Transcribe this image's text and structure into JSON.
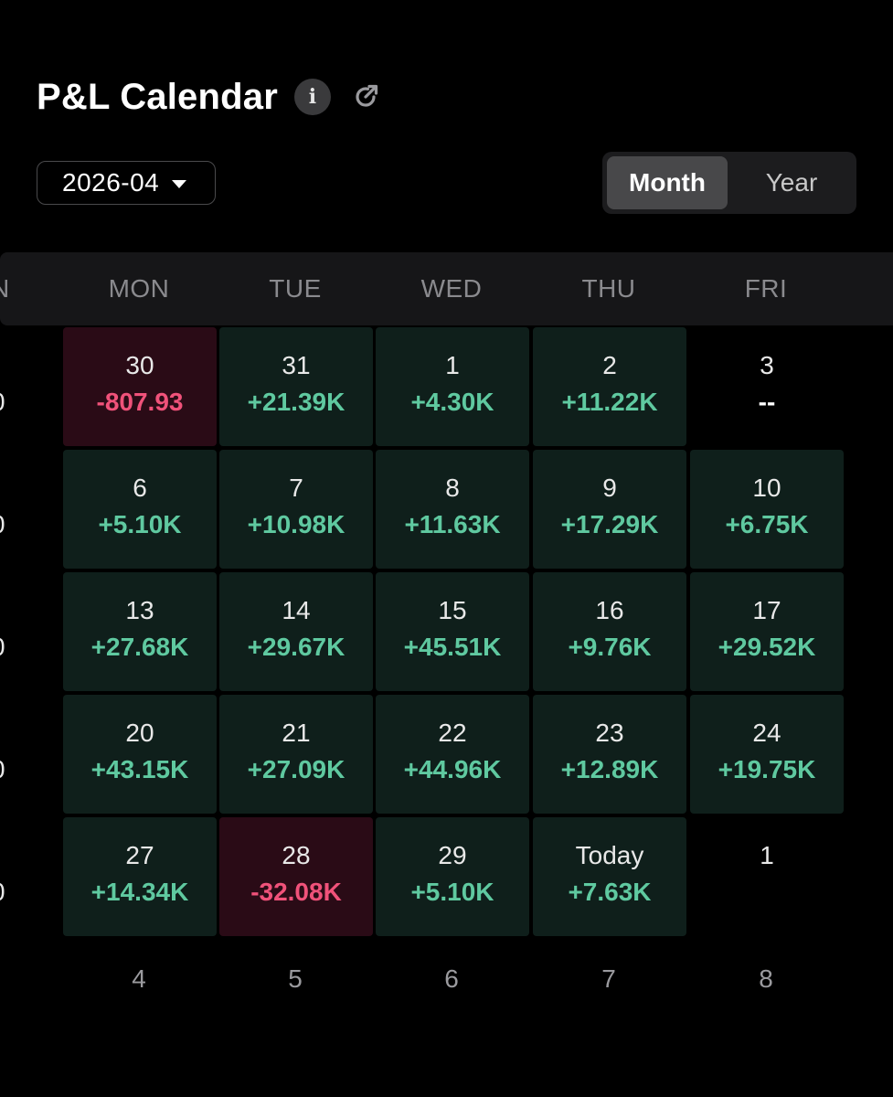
{
  "header": {
    "title": "P&L Calendar"
  },
  "controls": {
    "month_value": "2026-04",
    "view_toggle": [
      {
        "label": "Month",
        "active": true
      },
      {
        "label": "Year",
        "active": false
      }
    ]
  },
  "weekdays": {
    "clipped_left": "N",
    "mon": "MON",
    "tue": "TUE",
    "wed": "WED",
    "thu": "THU",
    "fri": "FRI"
  },
  "left_clipped_value": "0",
  "colors": {
    "positive": "#5fc9a0",
    "negative": "#f0527a",
    "positive_bg": "#0f1f1b",
    "negative_bg": "#2a0b16"
  },
  "weeks": [
    [
      {
        "day": "30",
        "pnl": "-807.93",
        "status": "neg"
      },
      {
        "day": "31",
        "pnl": "+21.39K",
        "status": "pos"
      },
      {
        "day": "1",
        "pnl": "+4.30K",
        "status": "pos"
      },
      {
        "day": "2",
        "pnl": "+11.22K",
        "status": "pos"
      },
      {
        "day": "3",
        "pnl": "--",
        "status": "empty"
      }
    ],
    [
      {
        "day": "6",
        "pnl": "+5.10K",
        "status": "pos"
      },
      {
        "day": "7",
        "pnl": "+10.98K",
        "status": "pos"
      },
      {
        "day": "8",
        "pnl": "+11.63K",
        "status": "pos"
      },
      {
        "day": "9",
        "pnl": "+17.29K",
        "status": "pos"
      },
      {
        "day": "10",
        "pnl": "+6.75K",
        "status": "pos"
      }
    ],
    [
      {
        "day": "13",
        "pnl": "+27.68K",
        "status": "pos"
      },
      {
        "day": "14",
        "pnl": "+29.67K",
        "status": "pos"
      },
      {
        "day": "15",
        "pnl": "+45.51K",
        "status": "pos"
      },
      {
        "day": "16",
        "pnl": "+9.76K",
        "status": "pos"
      },
      {
        "day": "17",
        "pnl": "+29.52K",
        "status": "pos"
      }
    ],
    [
      {
        "day": "20",
        "pnl": "+43.15K",
        "status": "pos"
      },
      {
        "day": "21",
        "pnl": "+27.09K",
        "status": "pos"
      },
      {
        "day": "22",
        "pnl": "+44.96K",
        "status": "pos"
      },
      {
        "day": "23",
        "pnl": "+12.89K",
        "status": "pos"
      },
      {
        "day": "24",
        "pnl": "+19.75K",
        "status": "pos"
      }
    ],
    [
      {
        "day": "27",
        "pnl": "+14.34K",
        "status": "pos"
      },
      {
        "day": "28",
        "pnl": "-32.08K",
        "status": "neg"
      },
      {
        "day": "29",
        "pnl": "+5.10K",
        "status": "pos"
      },
      {
        "day": "Today",
        "pnl": "+7.63K",
        "status": "pos"
      },
      {
        "day": "1",
        "pnl": "",
        "status": "empty"
      }
    ]
  ],
  "next_week_days": [
    "4",
    "5",
    "6",
    "7",
    "8"
  ]
}
